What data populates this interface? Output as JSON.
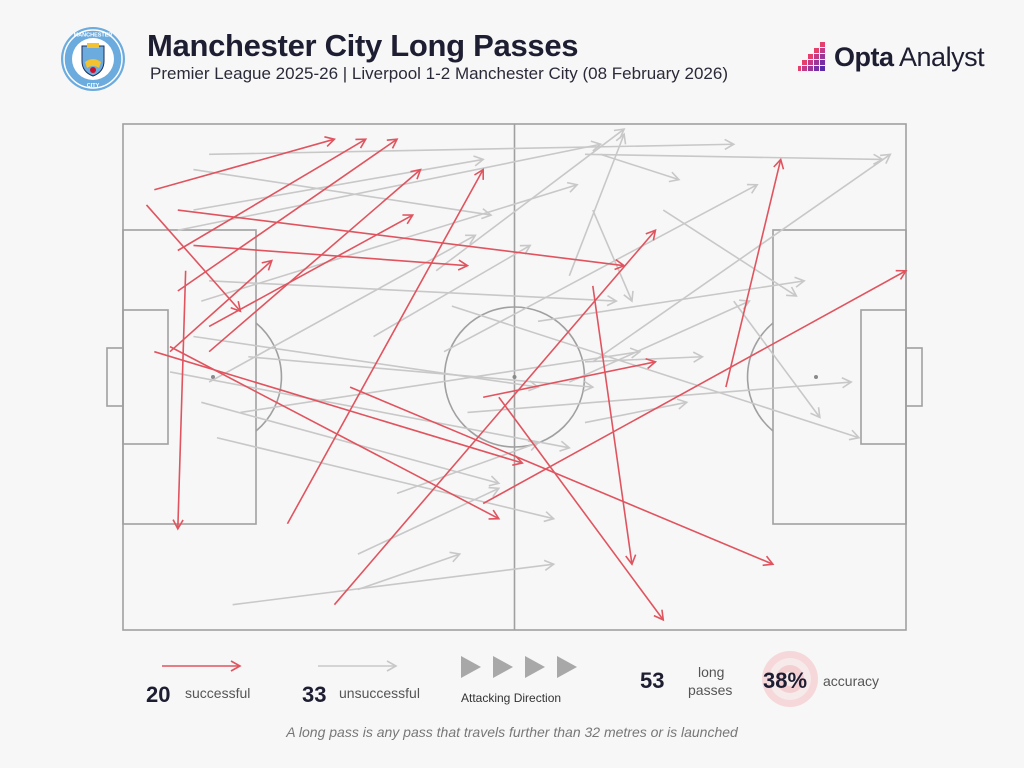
{
  "header": {
    "title": "Manchester City Long Passes",
    "subtitle": "Premier League 2025-26 | Liverpool 1-2 Manchester City (08 February 2026)",
    "crest_text_top": "MANCHESTER",
    "crest_text_bottom": "CITY",
    "brand_bold": "Opta",
    "brand_rest": " Analyst"
  },
  "colors": {
    "successful": "#e0545f",
    "unsuccessful": "#c8c8c8",
    "pitch_lines": "#9a9a9a",
    "background": "#f7f7f7",
    "accent": "#e4406b"
  },
  "legend": {
    "successful_count": "20",
    "successful_label": "successful",
    "unsuccessful_count": "33",
    "unsuccessful_label": "unsuccessful",
    "direction_label": "Attacking Direction",
    "total_count": "53",
    "total_label_line1": "long",
    "total_label_line2": "passes",
    "accuracy_value": "38%",
    "accuracy_label": "accuracy"
  },
  "footnote": "A long pass is any pass that travels further than 32 metres or is launched",
  "chart_data": {
    "type": "pass_map",
    "title": "Manchester City Long Passes",
    "pitch": {
      "length": 100,
      "width": 100,
      "attacking_direction": "left-to-right"
    },
    "successful_count": 20,
    "unsuccessful_count": 33,
    "total": 53,
    "accuracy_pct": 38,
    "passes": [
      {
        "start": [
          3,
          84
        ],
        "end": [
          15,
          63
        ],
        "outcome": "successful"
      },
      {
        "start": [
          4,
          87
        ],
        "end": [
          27,
          97
        ],
        "outcome": "successful"
      },
      {
        "start": [
          7,
          75
        ],
        "end": [
          31,
          97
        ],
        "outcome": "successful"
      },
      {
        "start": [
          8,
          71
        ],
        "end": [
          7,
          20
        ],
        "outcome": "successful"
      },
      {
        "start": [
          7,
          67
        ],
        "end": [
          35,
          97
        ],
        "outcome": "successful"
      },
      {
        "start": [
          11,
          55
        ],
        "end": [
          38,
          91
        ],
        "outcome": "successful"
      },
      {
        "start": [
          11,
          60
        ],
        "end": [
          37,
          82
        ],
        "outcome": "successful"
      },
      {
        "start": [
          9,
          76
        ],
        "end": [
          44,
          72
        ],
        "outcome": "successful"
      },
      {
        "start": [
          4,
          55
        ],
        "end": [
          51,
          33
        ],
        "outcome": "successful"
      },
      {
        "start": [
          7,
          83
        ],
        "end": [
          64,
          72
        ],
        "outcome": "successful"
      },
      {
        "start": [
          21,
          21
        ],
        "end": [
          46,
          91
        ],
        "outcome": "successful"
      },
      {
        "start": [
          6,
          56
        ],
        "end": [
          48,
          22
        ],
        "outcome": "successful"
      },
      {
        "start": [
          29,
          48
        ],
        "end": [
          83,
          13
        ],
        "outcome": "successful"
      },
      {
        "start": [
          27,
          5
        ],
        "end": [
          68,
          79
        ],
        "outcome": "successful"
      },
      {
        "start": [
          77,
          48
        ],
        "end": [
          84,
          93
        ],
        "outcome": "successful"
      },
      {
        "start": [
          46,
          46
        ],
        "end": [
          68,
          53
        ],
        "outcome": "successful"
      },
      {
        "start": [
          60,
          68
        ],
        "end": [
          65,
          13
        ],
        "outcome": "successful"
      },
      {
        "start": [
          48,
          46
        ],
        "end": [
          69,
          2
        ],
        "outcome": "successful"
      },
      {
        "start": [
          46,
          25
        ],
        "end": [
          100,
          71
        ],
        "outcome": "successful"
      },
      {
        "start": [
          6,
          55
        ],
        "end": [
          19,
          73
        ],
        "outcome": "successful"
      },
      {
        "start": [
          9,
          91
        ],
        "end": [
          47,
          82
        ],
        "outcome": "unsuccessful"
      },
      {
        "start": [
          7,
          79
        ],
        "end": [
          61,
          96
        ],
        "outcome": "unsuccessful"
      },
      {
        "start": [
          9,
          83
        ],
        "end": [
          46,
          93
        ],
        "outcome": "unsuccessful"
      },
      {
        "start": [
          10,
          65
        ],
        "end": [
          58,
          88
        ],
        "outcome": "unsuccessful"
      },
      {
        "start": [
          11,
          49
        ],
        "end": [
          45,
          78
        ],
        "outcome": "unsuccessful"
      },
      {
        "start": [
          15,
          43
        ],
        "end": [
          66,
          55
        ],
        "outcome": "unsuccessful"
      },
      {
        "start": [
          10,
          45
        ],
        "end": [
          48,
          29
        ],
        "outcome": "unsuccessful"
      },
      {
        "start": [
          6,
          51
        ],
        "end": [
          57,
          36
        ],
        "outcome": "unsuccessful"
      },
      {
        "start": [
          9,
          58
        ],
        "end": [
          53,
          48
        ],
        "outcome": "unsuccessful"
      },
      {
        "start": [
          16,
          54
        ],
        "end": [
          60,
          48
        ],
        "outcome": "unsuccessful"
      },
      {
        "start": [
          11,
          69
        ],
        "end": [
          63,
          65
        ],
        "outcome": "unsuccessful"
      },
      {
        "start": [
          12,
          38
        ],
        "end": [
          55,
          22
        ],
        "outcome": "unsuccessful"
      },
      {
        "start": [
          14,
          5
        ],
        "end": [
          55,
          13
        ],
        "outcome": "unsuccessful"
      },
      {
        "start": [
          30,
          8
        ],
        "end": [
          43,
          15
        ],
        "outcome": "unsuccessful"
      },
      {
        "start": [
          30,
          15
        ],
        "end": [
          48,
          28
        ],
        "outcome": "unsuccessful"
      },
      {
        "start": [
          11,
          94
        ],
        "end": [
          78,
          96
        ],
        "outcome": "unsuccessful"
      },
      {
        "start": [
          59,
          94
        ],
        "end": [
          97,
          93
        ],
        "outcome": "unsuccessful"
      },
      {
        "start": [
          40,
          71
        ],
        "end": [
          64,
          99
        ],
        "outcome": "unsuccessful"
      },
      {
        "start": [
          41,
          55
        ],
        "end": [
          81,
          88
        ],
        "outcome": "unsuccessful"
      },
      {
        "start": [
          60,
          53
        ],
        "end": [
          98,
          94
        ],
        "outcome": "unsuccessful"
      },
      {
        "start": [
          53,
          61
        ],
        "end": [
          87,
          69
        ],
        "outcome": "unsuccessful"
      },
      {
        "start": [
          57,
          49
        ],
        "end": [
          80,
          65
        ],
        "outcome": "unsuccessful"
      },
      {
        "start": [
          42,
          64
        ],
        "end": [
          94,
          38
        ],
        "outcome": "unsuccessful"
      },
      {
        "start": [
          59,
          53
        ],
        "end": [
          74,
          54
        ],
        "outcome": "unsuccessful"
      },
      {
        "start": [
          57,
          70
        ],
        "end": [
          64,
          98
        ],
        "outcome": "unsuccessful"
      },
      {
        "start": [
          60,
          83
        ],
        "end": [
          65,
          65
        ],
        "outcome": "unsuccessful"
      },
      {
        "start": [
          61,
          94
        ],
        "end": [
          71,
          89
        ],
        "outcome": "unsuccessful"
      },
      {
        "start": [
          59,
          41
        ],
        "end": [
          72,
          45
        ],
        "outcome": "unsuccessful"
      },
      {
        "start": [
          78,
          65
        ],
        "end": [
          89,
          42
        ],
        "outcome": "unsuccessful"
      },
      {
        "start": [
          69,
          83
        ],
        "end": [
          86,
          66
        ],
        "outcome": "unsuccessful"
      },
      {
        "start": [
          44,
          43
        ],
        "end": [
          93,
          49
        ],
        "outcome": "unsuccessful"
      },
      {
        "start": [
          35,
          27
        ],
        "end": [
          53,
          37
        ],
        "outcome": "unsuccessful"
      },
      {
        "start": [
          32,
          58
        ],
        "end": [
          52,
          76
        ],
        "outcome": "unsuccessful"
      }
    ]
  }
}
